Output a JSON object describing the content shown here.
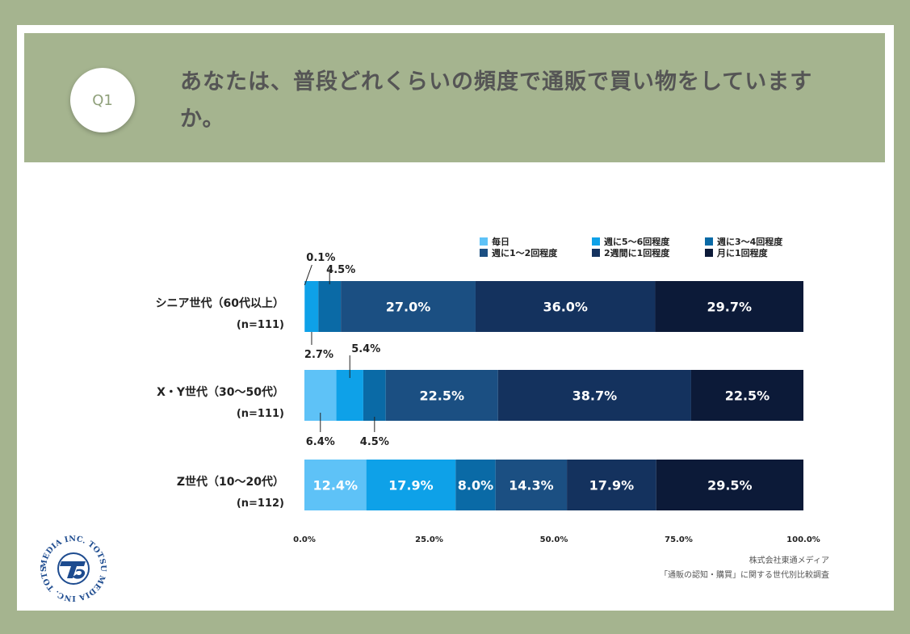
{
  "question": {
    "badge": "Q1",
    "text": "あなたは、普段どれくらいの頻度で通販で買い物をしていますか。"
  },
  "colors": [
    "#5ec2f7",
    "#0ea1e8",
    "#0a6aa6",
    "#1b4f82",
    "#14325e",
    "#0c1a38"
  ],
  "chart_data": {
    "type": "bar",
    "orientation": "horizontal-stacked-100",
    "legend": [
      "毎日",
      "週に5〜6回程度",
      "週に3〜4回程度",
      "週に1〜2回程度",
      "2週間に1回程度",
      "月に1回程度"
    ],
    "categories": [
      {
        "label": "シニア世代（60代以上）",
        "n": "(n=111)"
      },
      {
        "label": "X・Y世代（30〜50代）",
        "n": "(n=111)"
      },
      {
        "label": "Z世代（10〜20代）",
        "n": "(n=112)"
      }
    ],
    "series": [
      {
        "name": "毎日",
        "values": [
          0.1,
          6.4,
          12.4
        ]
      },
      {
        "name": "週に5〜6回程度",
        "values": [
          2.7,
          5.4,
          17.9
        ]
      },
      {
        "name": "週に3〜4回程度",
        "values": [
          4.5,
          4.5,
          8.0
        ]
      },
      {
        "name": "週に1〜2回程度",
        "values": [
          27.0,
          22.5,
          14.3
        ]
      },
      {
        "name": "2週間に1回程度",
        "values": [
          36.0,
          38.7,
          17.9
        ]
      },
      {
        "name": "月に1回程度",
        "values": [
          29.7,
          22.5,
          29.5
        ]
      }
    ],
    "labels": [
      [
        "0.1%",
        "2.7%",
        "4.5%",
        "27.0%",
        "36.0%",
        "29.7%"
      ],
      [
        "6.4%",
        "5.4%",
        "4.5%",
        "22.5%",
        "38.7%",
        "22.5%"
      ],
      [
        "12.4%",
        "17.9%",
        "8.0%",
        "14.3%",
        "17.9%",
        "29.5%"
      ]
    ],
    "xticks": [
      "0.0%",
      "25.0%",
      "50.0%",
      "75.0%",
      "100.0%"
    ],
    "xlim": [
      0,
      100
    ]
  },
  "source": {
    "line1": "株式会社東通メディア",
    "line2": "「通販の認知・購買」に関する世代別比較調査"
  },
  "logo": {
    "text": "MEDIA INC. TOTSU MEDIA INC. TOTSU"
  }
}
